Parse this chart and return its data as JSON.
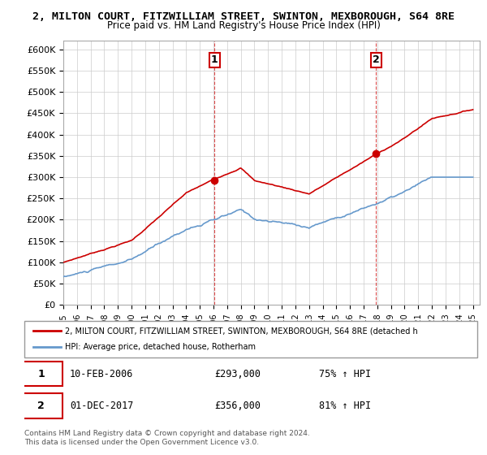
{
  "title": "2, MILTON COURT, FITZWILLIAM STREET, SWINTON, MEXBOROUGH, S64 8RE",
  "subtitle": "Price paid vs. HM Land Registry's House Price Index (HPI)",
  "legend_line1": "2, MILTON COURT, FITZWILLIAM STREET, SWINTON, MEXBOROUGH, S64 8RE (detached h",
  "legend_line2": "HPI: Average price, detached house, Rotherham",
  "sale1_date": "10-FEB-2006",
  "sale1_price": 293000,
  "sale1_hpi_pct": "75% ↑ HPI",
  "sale2_date": "01-DEC-2017",
  "sale2_price": 356000,
  "sale2_hpi_pct": "81% ↑ HPI",
  "footnote1": "Contains HM Land Registry data © Crown copyright and database right 2024.",
  "footnote2": "This data is licensed under the Open Government Licence v3.0.",
  "red_color": "#cc0000",
  "blue_color": "#6699cc",
  "background_color": "#ffffff",
  "grid_color": "#cccccc",
  "sale_marker_color": "#cc0000",
  "ylim": [
    0,
    620000
  ],
  "yticks": [
    0,
    50000,
    100000,
    150000,
    200000,
    250000,
    300000,
    350000,
    400000,
    450000,
    500000,
    550000,
    600000
  ],
  "ytick_labels": [
    "£0",
    "£50K",
    "£100K",
    "£150K",
    "£200K",
    "£250K",
    "£300K",
    "£350K",
    "£400K",
    "£450K",
    "£500K",
    "£550K",
    "£600K"
  ]
}
